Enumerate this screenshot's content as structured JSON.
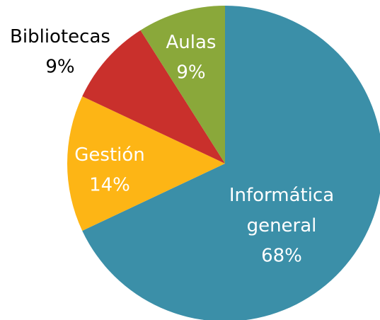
{
  "chart_data": {
    "type": "pie",
    "categories": [
      "Informática general",
      "Gestión",
      "Bibliotecas",
      "Aulas"
    ],
    "values": [
      68,
      14,
      9,
      9
    ],
    "value_labels": [
      "68%",
      "14%",
      "9%",
      "9%"
    ],
    "colors": [
      "#3b8fa8",
      "#fdb515",
      "#c9302c",
      "#8aa83a"
    ],
    "start_angle": 0,
    "direction": "clockwise"
  }
}
